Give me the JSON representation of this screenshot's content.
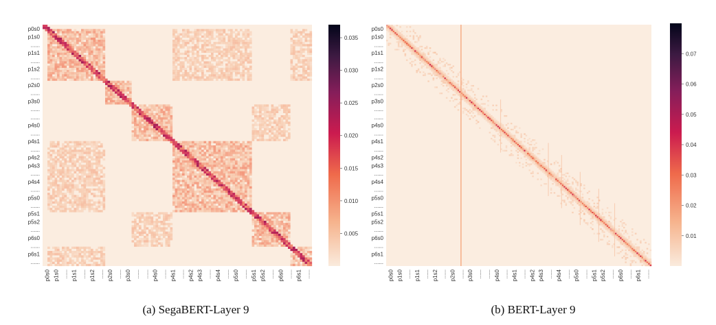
{
  "chart_data": [
    {
      "type": "heatmap",
      "title": "",
      "caption": "(a)  SegaBERT-Layer 9",
      "xlabel": "",
      "ylabel": "",
      "y_tick_labels": [
        "p0s0",
        "p1s0",
        "......",
        "p1s1",
        "......",
        "p1s2",
        "......",
        "p2s0",
        "......",
        "p3s0",
        "......",
        "......",
        "p4s0",
        "......",
        "p4s1",
        "......",
        "p4s2",
        "p4s3",
        "......",
        "p4s4",
        "......",
        "p5s0",
        "......",
        "p5s1",
        "p5s2",
        "......",
        "p6s0",
        "......",
        "p6s1",
        "......"
      ],
      "x_tick_labels": [
        "p0s0",
        "p1s0",
        "......",
        "p1s1",
        "......",
        "p1s2",
        "......",
        "p2s0",
        "......",
        "p3s0",
        "......",
        "......",
        "p4s0",
        "......",
        "p4s1",
        "......",
        "p4s2",
        "p4s3",
        "......",
        "p4s4",
        "......",
        "p5s0",
        "......",
        "p5s1",
        "p5s2",
        "......",
        "p6s0",
        "......",
        "p6s1",
        "......"
      ],
      "colorbar": {
        "min": 0,
        "max": 0.037,
        "ticks": [
          0.005,
          0.01,
          0.015,
          0.02,
          0.025,
          0.03,
          0.035
        ],
        "labels": [
          "0.005",
          "0.010",
          "0.015",
          "0.020",
          "0.025",
          "0.030",
          "0.035"
        ]
      },
      "segments": [
        0,
        0.02,
        0.11,
        0.18,
        0.23,
        0.33,
        0.48,
        0.59,
        0.66,
        0.71,
        0.75,
        0.78,
        0.84,
        0.92,
        0.95,
        1.0
      ],
      "paragraph_of_segment": [
        0,
        1,
        1,
        1,
        2,
        3,
        4,
        4,
        4,
        4,
        4,
        5,
        5,
        6,
        6
      ],
      "cross_paragraph_pairs": [
        [
          1,
          4
        ],
        [
          1,
          6
        ],
        [
          3,
          5
        ]
      ],
      "within_paragraph_block_value": 0.009,
      "cross_paragraph_block_value": 0.006,
      "diagonal_value": 0.02,
      "background_value": 0.0015
    },
    {
      "type": "heatmap",
      "title": "",
      "caption": "(b)  BERT-Layer 9",
      "xlabel": "",
      "ylabel": "",
      "y_tick_labels": [
        "p0s0",
        "p1s0",
        "......",
        "p1s1",
        "......",
        "p1s2",
        "......",
        "p2s0",
        "......",
        "p3s0",
        "......",
        "......",
        "p4s0",
        "......",
        "p4s1",
        "......",
        "p4s2",
        "p4s3",
        "......",
        "p4s4",
        "......",
        "p5s0",
        "......",
        "p5s1",
        "p5s2",
        "......",
        "p6s0",
        "......",
        "p6s1",
        "......"
      ],
      "x_tick_labels": [
        "p0s0",
        "p1s0",
        "......",
        "p1s1",
        "......",
        "p1s2",
        "......",
        "p2s0",
        "......",
        "p3s0",
        "......",
        "......",
        "p4s0",
        "......",
        "p4s1",
        "......",
        "p4s2",
        "p4s3",
        "......",
        "p4s4",
        "......",
        "p5s0",
        "......",
        "p5s1",
        "p5s2",
        "......",
        "p6s0",
        "......",
        "p6s1",
        "......"
      ],
      "colorbar": {
        "min": 0,
        "max": 0.08,
        "ticks": [
          0.01,
          0.02,
          0.03,
          0.04,
          0.05,
          0.06,
          0.07
        ],
        "labels": [
          "0.01",
          "0.02",
          "0.03",
          "0.04",
          "0.05",
          "0.06",
          "0.07"
        ]
      },
      "diagonal_value": 0.035,
      "near_diagonal_value": 0.012,
      "background_value": 0.003,
      "vertical_stripes": [
        0.28,
        0.43,
        0.61,
        0.66,
        0.73,
        0.8,
        0.86
      ],
      "strong_vertical_stripe": 0.28
    }
  ]
}
